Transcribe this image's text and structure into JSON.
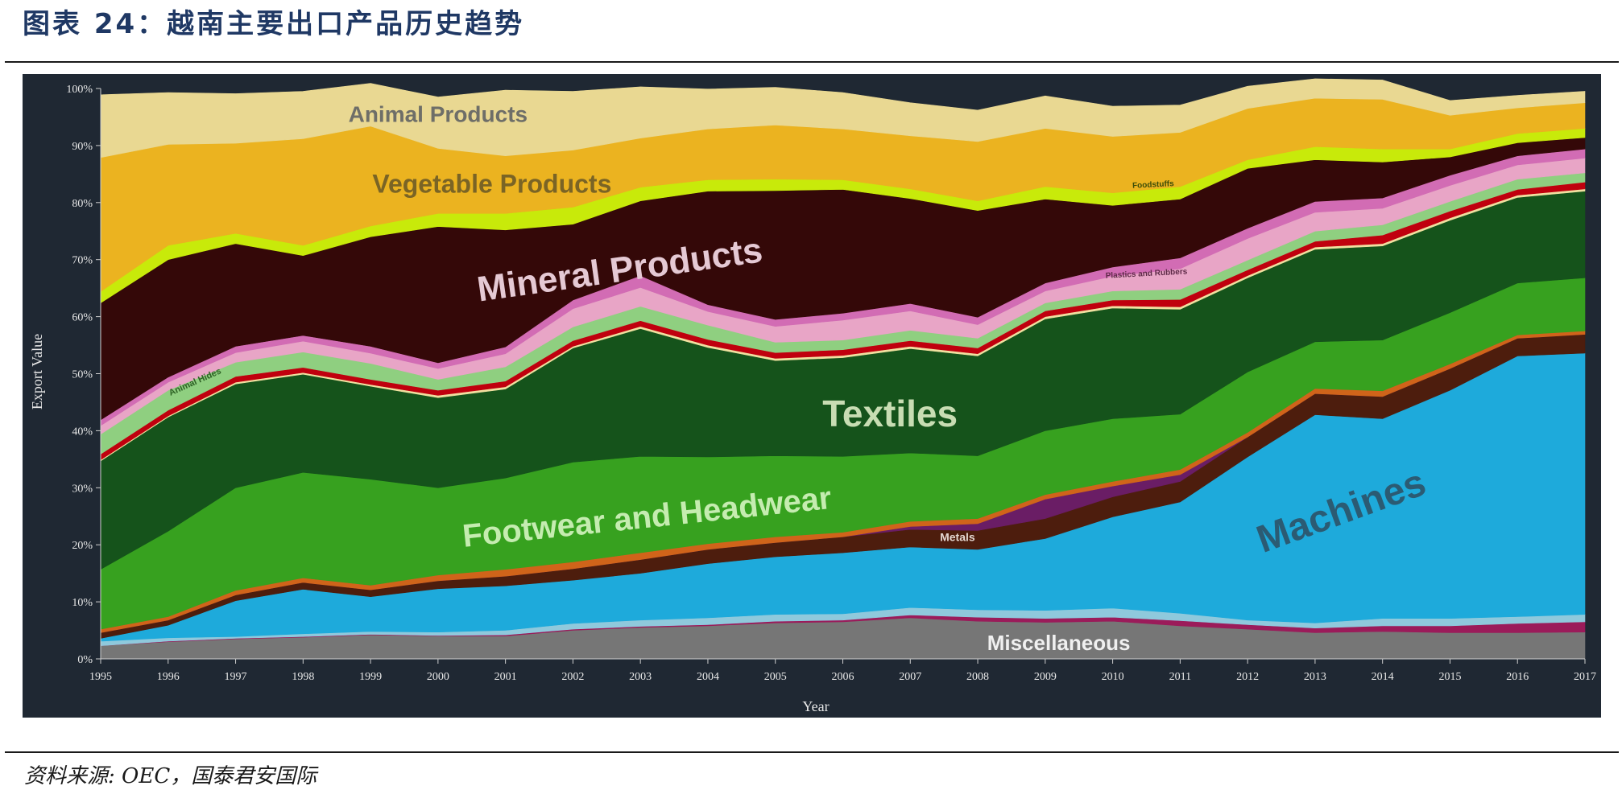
{
  "title": "图表 24：越南主要出口产品历史趋势",
  "source": "资料来源: OEC，国泰君安国际",
  "chart_data": {
    "type": "area",
    "stacked": true,
    "normalized": true,
    "xlabel": "Year",
    "ylabel": "Export Value",
    "ylim": [
      0,
      100
    ],
    "yticks": [
      "0%",
      "10%",
      "20%",
      "30%",
      "40%",
      "50%",
      "60%",
      "70%",
      "80%",
      "90%",
      "100%"
    ],
    "x": [
      1995,
      1996,
      1997,
      1998,
      1999,
      2000,
      2001,
      2002,
      2003,
      2004,
      2005,
      2006,
      2007,
      2008,
      2009,
      2010,
      2011,
      2012,
      2013,
      2014,
      2015,
      2016,
      2017
    ],
    "series": [
      {
        "key": "misc",
        "color": "#767676",
        "values": [
          2.3,
          3.0,
          3.5,
          3.8,
          4.2,
          4.0,
          4.0,
          5.0,
          5.5,
          5.8,
          6.3,
          6.5,
          7.2,
          6.6,
          6.4,
          6.6,
          5.8,
          5.2,
          4.6,
          4.8,
          4.6,
          4.6,
          4.7
        ]
      },
      {
        "key": "misc2",
        "color": "#9b1b5a",
        "values": [
          0.0,
          0.1,
          0.1,
          0.1,
          0.1,
          0.1,
          0.2,
          0.2,
          0.2,
          0.2,
          0.3,
          0.3,
          0.5,
          0.7,
          0.7,
          0.7,
          0.9,
          0.8,
          0.8,
          1.0,
          1.2,
          1.6,
          1.8
        ]
      },
      {
        "key": "misc3",
        "color": "#8fc9dc",
        "values": [
          0.8,
          0.6,
          0.3,
          0.5,
          0.5,
          0.6,
          0.8,
          1.0,
          1.1,
          1.2,
          1.2,
          1.1,
          1.3,
          1.3,
          1.4,
          1.6,
          1.3,
          0.8,
          0.9,
          1.3,
          1.3,
          1.2,
          1.3
        ]
      },
      {
        "name": "Machines",
        "key": "machines",
        "color": "#1eaadb",
        "values": [
          0.5,
          2.2,
          6.3,
          7.8,
          6.1,
          7.6,
          7.8,
          7.6,
          8.2,
          9.5,
          10.1,
          10.7,
          10.6,
          10.6,
          12.6,
          16.0,
          19.5,
          28.6,
          36.5,
          35.0,
          40.0,
          45.7,
          45.8
        ]
      },
      {
        "key": "mach2",
        "color": "#4d1d0d",
        "values": [
          1.0,
          0.9,
          1.0,
          1.2,
          1.2,
          1.4,
          1.7,
          2.0,
          2.4,
          2.5,
          2.5,
          2.8,
          3.1,
          3.3,
          3.5,
          3.5,
          3.6,
          3.5,
          3.7,
          3.9,
          3.8,
          3.1,
          3.3
        ]
      },
      {
        "name": "Metals",
        "key": "metals",
        "color": "#6a1d65",
        "values": [
          0.0,
          0.0,
          0.0,
          0.0,
          0.0,
          0.0,
          0.0,
          0.0,
          0.0,
          0.0,
          0.0,
          0.0,
          0.5,
          1.2,
          3.4,
          1.9,
          1.2,
          0.0,
          0.0,
          0.0,
          0.0,
          0.0,
          0.0
        ]
      },
      {
        "key": "metals2",
        "color": "#d0641a",
        "values": [
          0.6,
          0.6,
          0.8,
          0.8,
          0.8,
          1.0,
          1.2,
          1.2,
          1.2,
          1.0,
          1.0,
          0.8,
          0.9,
          0.9,
          0.8,
          0.8,
          0.9,
          0.8,
          0.9,
          1.0,
          0.8,
          0.6,
          0.6
        ]
      },
      {
        "name": "Footwear and Headwear",
        "key": "footwear",
        "color": "#37a11f",
        "values": [
          10.5,
          15.0,
          18.0,
          18.5,
          18.6,
          15.3,
          16.0,
          17.5,
          16.9,
          15.2,
          14.2,
          13.3,
          12.0,
          11.0,
          11.2,
          11.0,
          9.7,
          10.6,
          8.2,
          8.9,
          9.0,
          9.1,
          9.3
        ]
      },
      {
        "name": "Textiles",
        "key": "textiles",
        "color": "#15531b",
        "values": [
          19.0,
          20.0,
          18.2,
          17.2,
          16.3,
          15.8,
          15.6,
          20.0,
          22.4,
          19.2,
          16.7,
          17.3,
          18.3,
          17.5,
          19.6,
          19.4,
          18.4,
          16.5,
          16.2,
          16.5,
          16.2,
          15.0,
          15.2
        ]
      },
      {
        "key": "tex2",
        "color": "#f0e0a0",
        "values": [
          0.2,
          0.2,
          0.3,
          0.3,
          0.3,
          0.4,
          0.4,
          0.3,
          0.4,
          0.4,
          0.4,
          0.4,
          0.4,
          0.4,
          0.4,
          0.4,
          0.4,
          0.4,
          0.4,
          0.4,
          0.4,
          0.4,
          0.4
        ]
      },
      {
        "key": "tex3",
        "color": "#c0000e",
        "values": [
          1.0,
          1.0,
          1.0,
          0.9,
          0.9,
          0.9,
          1.0,
          1.0,
          1.0,
          1.0,
          1.0,
          1.0,
          1.0,
          1.0,
          1.0,
          1.0,
          1.3,
          1.0,
          1.0,
          1.5,
          1.2,
          1.0,
          1.2
        ]
      },
      {
        "name": "Animal Hides",
        "key": "hides",
        "color": "#8fcf80",
        "values": [
          3.5,
          3.5,
          2.5,
          2.7,
          2.8,
          1.9,
          2.5,
          2.4,
          2.5,
          2.5,
          1.8,
          1.7,
          1.8,
          1.7,
          1.4,
          1.6,
          1.8,
          1.7,
          1.8,
          1.8,
          1.7,
          1.8,
          1.6
        ]
      },
      {
        "name": "Plastics and Rubbers",
        "key": "plastics",
        "color": "#e8a5c6",
        "values": [
          1.5,
          1.4,
          1.7,
          1.9,
          1.8,
          1.9,
          2.3,
          3.2,
          3.3,
          2.4,
          2.8,
          3.5,
          3.4,
          2.4,
          2.1,
          2.6,
          3.6,
          3.8,
          3.3,
          2.9,
          2.8,
          2.5,
          2.6
        ]
      },
      {
        "key": "plastics2",
        "color": "#d26cb4",
        "values": [
          1.0,
          0.9,
          1.1,
          1.0,
          1.2,
          1.0,
          1.2,
          1.5,
          2.1,
          1.2,
          1.2,
          1.2,
          1.3,
          1.3,
          1.4,
          1.6,
          1.9,
          1.8,
          1.9,
          1.8,
          1.8,
          1.6,
          1.6
        ]
      },
      {
        "name": "Mineral Products",
        "key": "mineral",
        "color": "#340808",
        "values": [
          20.5,
          20.6,
          18.0,
          14.0,
          19.2,
          23.9,
          20.5,
          13.3,
          13.1,
          19.9,
          22.6,
          21.7,
          18.4,
          18.7,
          14.7,
          10.8,
          10.3,
          10.5,
          7.3,
          6.3,
          3.2,
          2.3,
          2.0
        ]
      },
      {
        "name": "Foodstuffs",
        "key": "foodstuffs",
        "color": "#c8ea0a",
        "values": [
          2.0,
          2.5,
          1.8,
          1.8,
          1.9,
          2.3,
          2.9,
          3.0,
          2.4,
          2.0,
          2.0,
          1.7,
          1.7,
          1.7,
          2.2,
          2.2,
          2.2,
          1.5,
          2.3,
          2.3,
          1.4,
          1.6,
          1.6
        ]
      },
      {
        "name": "Vegetable Products",
        "key": "vegetable",
        "color": "#ebb320",
        "values": [
          23.5,
          17.7,
          15.8,
          18.7,
          17.5,
          11.4,
          10.1,
          10.0,
          8.6,
          8.9,
          9.5,
          8.9,
          9.3,
          10.4,
          10.2,
          9.9,
          9.5,
          9.0,
          8.5,
          8.7,
          5.9,
          4.5,
          4.5
        ]
      },
      {
        "name": "Animal Products",
        "key": "animal",
        "color": "#e9d892",
        "values": [
          11.0,
          9.1,
          8.7,
          8.3,
          7.5,
          9.0,
          11.5,
          10.3,
          9.0,
          7.0,
          6.6,
          6.4,
          5.8,
          5.5,
          5.7,
          5.3,
          4.8,
          3.9,
          3.4,
          3.4,
          2.6,
          2.2,
          2.0
        ]
      }
    ],
    "annotations": [
      {
        "text": "Animal Products",
        "color": "#6e6e68",
        "size": 28,
        "x": 2000,
        "y": 95.2,
        "rotate": 0
      },
      {
        "text": "Vegetable Products",
        "color": "#7a6425",
        "size": 32,
        "x": 2000.8,
        "y": 82.9,
        "rotate": 0
      },
      {
        "text": "Mineral Products",
        "color": "#e5c9d4",
        "size": 44,
        "x": 2002.7,
        "y": 67.8,
        "rotate": -8
      },
      {
        "text": "Animal Hides",
        "color": "#2d6124",
        "size": 11,
        "x": 1996.4,
        "y": 48.5,
        "rotate": -24
      },
      {
        "text": "Textiles",
        "color": "#c8ddb3",
        "size": 46,
        "x": 2006.7,
        "y": 42.5,
        "rotate": 0
      },
      {
        "text": "Footwear and Headwear",
        "color": "#c5ecb0",
        "size": 40,
        "x": 2003.1,
        "y": 24.5,
        "rotate": -6
      },
      {
        "text": "Metals",
        "color": "#e4d7d0",
        "size": 14,
        "x": 2007.7,
        "y": 21.2,
        "rotate": 0
      },
      {
        "text": "Machines",
        "color": "#2b5b73",
        "size": 48,
        "x": 2013.4,
        "y": 25.5,
        "rotate": -20
      },
      {
        "text": "Foodstuffs",
        "color": "#3a4c08",
        "size": 10,
        "x": 2010.6,
        "y": 83.1,
        "rotate": -3
      },
      {
        "text": "Plastics and Rubbers",
        "color": "#5e2a48",
        "size": 10,
        "x": 2010.5,
        "y": 67.5,
        "rotate": -3
      },
      {
        "text": "Miscellaneous",
        "color": "#f0f0f0",
        "size": 26,
        "x": 2009.2,
        "y": 2.5,
        "rotate": 0
      }
    ]
  }
}
